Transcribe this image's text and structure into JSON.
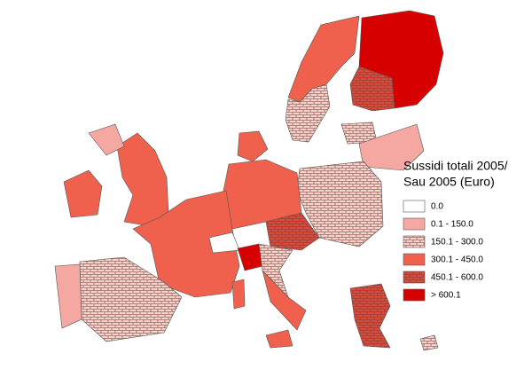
{
  "legend": {
    "title": [
      "Sussidi totali 2005/",
      "Sau 2005 (Euro)"
    ],
    "items": [
      {
        "label": "0.0",
        "color": "#ffffff"
      },
      {
        "label": "0.1 - 150.0",
        "color": "#f5a8a2"
      },
      {
        "label": "150.1 - 300.0",
        "color": "#f3d3cc",
        "pattern": "brick"
      },
      {
        "label": "300.1 - 450.0",
        "color": "#ef614d"
      },
      {
        "label": "450.1 - 600.0",
        "color": "#d94c3d",
        "pattern": "brick"
      },
      {
        "label": "> 600.1",
        "color": "#d70000"
      }
    ]
  }
}
